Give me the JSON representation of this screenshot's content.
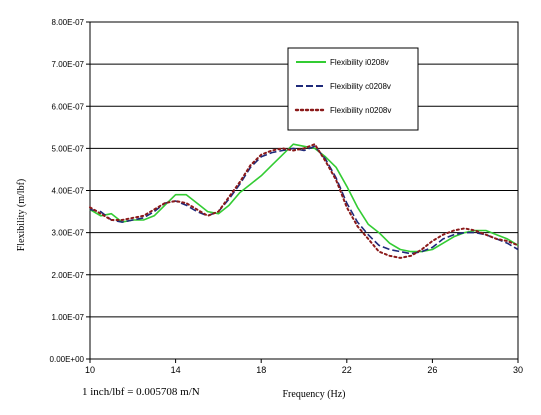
{
  "chart_data": {
    "type": "line",
    "title": "",
    "xlabel": "Frequency (Hz)",
    "ylabel": "Flexibility (m/lbf)",
    "xlim": [
      10,
      30
    ],
    "ylim": [
      0,
      8e-07
    ],
    "x_ticks": [
      "10",
      "14",
      "18",
      "22",
      "26",
      "30"
    ],
    "x_tick_values": [
      10,
      14,
      18,
      22,
      26,
      30
    ],
    "y_ticks": [
      "0.00E+00",
      "1.00E-07",
      "2.00E-07",
      "3.00E-07",
      "4.00E-07",
      "5.00E-07",
      "6.00E-07",
      "7.00E-07",
      "8.00E-07"
    ],
    "y_tick_values": [
      0,
      1e-07,
      2e-07,
      3e-07,
      4e-07,
      5e-07,
      6e-07,
      7e-07,
      8e-07
    ],
    "grid": "horizontal",
    "legend_position": "top-right",
    "annotation": "1 inch/lbf = 0.005708 m/N",
    "series": [
      {
        "name": "Flexibility i0208v",
        "color": "#33cc33",
        "style": "solid",
        "x": [
          10,
          10.5,
          11,
          11.5,
          12,
          12.5,
          13,
          13.5,
          14,
          14.5,
          15,
          15.5,
          16,
          16.5,
          17,
          17.5,
          18,
          18.5,
          19,
          19.5,
          20,
          20.5,
          21,
          21.5,
          22,
          22.5,
          23,
          23.5,
          24,
          24.5,
          25,
          25.5,
          26,
          26.5,
          27,
          27.5,
          28,
          28.5,
          29,
          29.5,
          30
        ],
        "y": [
          3.55e-07,
          3.4e-07,
          3.45e-07,
          3.25e-07,
          3.3e-07,
          3.3e-07,
          3.4e-07,
          3.65e-07,
          3.9e-07,
          3.9e-07,
          3.7e-07,
          3.5e-07,
          3.45e-07,
          3.65e-07,
          3.95e-07,
          4.15e-07,
          4.35e-07,
          4.6e-07,
          4.85e-07,
          5.1e-07,
          5.05e-07,
          5e-07,
          4.8e-07,
          4.55e-07,
          4.1e-07,
          3.6e-07,
          3.2e-07,
          3e-07,
          2.75e-07,
          2.6e-07,
          2.55e-07,
          2.55e-07,
          2.6e-07,
          2.75e-07,
          2.9e-07,
          3e-07,
          3.05e-07,
          3.05e-07,
          2.95e-07,
          2.85e-07,
          2.7e-07
        ]
      },
      {
        "name": "Flexibility c0208v",
        "color": "#1f2a7a",
        "style": "dashed",
        "x": [
          10,
          10.5,
          11,
          11.5,
          12,
          12.5,
          13,
          13.5,
          14,
          14.5,
          15,
          15.5,
          16,
          16.5,
          17,
          17.5,
          18,
          18.5,
          19,
          19.5,
          20,
          20.5,
          21,
          21.5,
          22,
          22.5,
          23,
          23.5,
          24,
          24.5,
          25,
          25.5,
          26,
          26.5,
          27,
          27.5,
          28,
          28.5,
          29,
          29.5,
          30
        ],
        "y": [
          3.55e-07,
          3.5e-07,
          3.3e-07,
          3.25e-07,
          3.3e-07,
          3.35e-07,
          3.5e-07,
          3.7e-07,
          3.75e-07,
          3.65e-07,
          3.5e-07,
          3.4e-07,
          3.5e-07,
          3.8e-07,
          4.15e-07,
          4.55e-07,
          4.8e-07,
          4.9e-07,
          4.95e-07,
          5e-07,
          4.95e-07,
          5.05e-07,
          4.75e-07,
          4.3e-07,
          3.7e-07,
          3.25e-07,
          2.95e-07,
          2.7e-07,
          2.6e-07,
          2.55e-07,
          2.5e-07,
          2.55e-07,
          2.65e-07,
          2.85e-07,
          2.95e-07,
          3e-07,
          3e-07,
          2.95e-07,
          2.85e-07,
          2.75e-07,
          2.6e-07
        ]
      },
      {
        "name": "Flexibility n0208v",
        "color": "#8b1a1a",
        "style": "dotted",
        "x": [
          10,
          10.5,
          11,
          11.5,
          12,
          12.5,
          13,
          13.5,
          14,
          14.5,
          15,
          15.5,
          16,
          16.5,
          17,
          17.5,
          18,
          18.5,
          19,
          19.5,
          20,
          20.5,
          21,
          21.5,
          22,
          22.5,
          23,
          23.5,
          24,
          24.5,
          25,
          25.5,
          26,
          26.5,
          27,
          27.5,
          28,
          28.5,
          29,
          29.5,
          30
        ],
        "y": [
          3.6e-07,
          3.45e-07,
          3.3e-07,
          3.3e-07,
          3.35e-07,
          3.4e-07,
          3.55e-07,
          3.7e-07,
          3.75e-07,
          3.7e-07,
          3.55e-07,
          3.4e-07,
          3.5e-07,
          3.85e-07,
          4.2e-07,
          4.6e-07,
          4.85e-07,
          4.95e-07,
          5e-07,
          4.95e-07,
          5e-07,
          5.1e-07,
          4.7e-07,
          4.25e-07,
          3.6e-07,
          3.15e-07,
          2.85e-07,
          2.55e-07,
          2.45e-07,
          2.4e-07,
          2.45e-07,
          2.6e-07,
          2.8e-07,
          2.95e-07,
          3.05e-07,
          3.1e-07,
          3.05e-07,
          2.95e-07,
          2.85e-07,
          2.8e-07,
          2.7e-07
        ]
      }
    ]
  }
}
